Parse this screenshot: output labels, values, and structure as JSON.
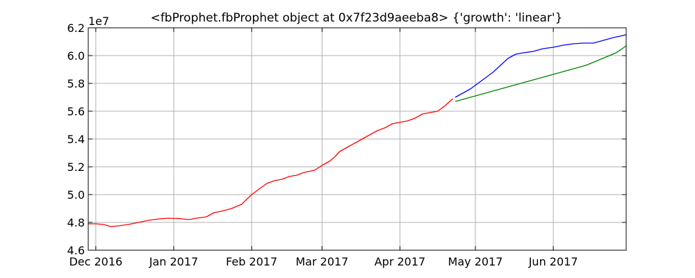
{
  "chart_data": {
    "type": "line",
    "title": "<fbProphet.fbProphet object at 0x7f23d9aeeba8> {'growth': 'linear'}",
    "xlabel": "",
    "ylabel": "",
    "y_scale_note": "1e7",
    "xlim": [
      "2016-11-28",
      "2017-06-30"
    ],
    "ylim": [
      4.6,
      6.2
    ],
    "grid": true,
    "x_ticks": [
      {
        "date": "2016-12-01",
        "label": "Dec 2016"
      },
      {
        "date": "2017-01-01",
        "label": "Jan 2017"
      },
      {
        "date": "2017-02-01",
        "label": "Feb 2017"
      },
      {
        "date": "2017-03-01",
        "label": "Mar 2017"
      },
      {
        "date": "2017-04-01",
        "label": "Apr 2017"
      },
      {
        "date": "2017-05-01",
        "label": "May 2017"
      },
      {
        "date": "2017-06-01",
        "label": "Jun 2017"
      }
    ],
    "y_ticks": [
      4.6,
      4.8,
      5.0,
      5.2,
      5.4,
      5.6,
      5.8,
      6.0,
      6.2
    ],
    "series": [
      {
        "color": "#ff0000",
        "points": [
          [
            "2016-11-28",
            4.79
          ],
          [
            "2016-12-01",
            4.79
          ],
          [
            "2016-12-04",
            4.785
          ],
          [
            "2016-12-07",
            4.77
          ],
          [
            "2016-12-10",
            4.775
          ],
          [
            "2016-12-14",
            4.785
          ],
          [
            "2016-12-18",
            4.8
          ],
          [
            "2016-12-22",
            4.815
          ],
          [
            "2016-12-26",
            4.825
          ],
          [
            "2016-12-30",
            4.83
          ],
          [
            "2017-01-03",
            4.828
          ],
          [
            "2017-01-07",
            4.82
          ],
          [
            "2017-01-10",
            4.83
          ],
          [
            "2017-01-14",
            4.84
          ],
          [
            "2017-01-17",
            4.87
          ],
          [
            "2017-01-20",
            4.88
          ],
          [
            "2017-01-24",
            4.9
          ],
          [
            "2017-01-28",
            4.93
          ],
          [
            "2017-02-01",
            5.0
          ],
          [
            "2017-02-04",
            5.04
          ],
          [
            "2017-02-07",
            5.08
          ],
          [
            "2017-02-10",
            5.1
          ],
          [
            "2017-02-13",
            5.11
          ],
          [
            "2017-02-16",
            5.13
          ],
          [
            "2017-02-19",
            5.14
          ],
          [
            "2017-02-22",
            5.16
          ],
          [
            "2017-02-26",
            5.175
          ],
          [
            "2017-03-01",
            5.21
          ],
          [
            "2017-03-04",
            5.24
          ],
          [
            "2017-03-06",
            5.27
          ],
          [
            "2017-03-08",
            5.31
          ],
          [
            "2017-03-11",
            5.34
          ],
          [
            "2017-03-14",
            5.37
          ],
          [
            "2017-03-17",
            5.4
          ],
          [
            "2017-03-20",
            5.43
          ],
          [
            "2017-03-23",
            5.46
          ],
          [
            "2017-03-26",
            5.48
          ],
          [
            "2017-03-29",
            5.51
          ],
          [
            "2017-04-01",
            5.52
          ],
          [
            "2017-04-04",
            5.53
          ],
          [
            "2017-04-07",
            5.55
          ],
          [
            "2017-04-10",
            5.58
          ],
          [
            "2017-04-13",
            5.59
          ],
          [
            "2017-04-16",
            5.6
          ],
          [
            "2017-04-19",
            5.64
          ],
          [
            "2017-04-22",
            5.69
          ]
        ]
      },
      {
        "color": "#0000ff",
        "points": [
          [
            "2017-04-23",
            5.7
          ],
          [
            "2017-04-26",
            5.73
          ],
          [
            "2017-04-29",
            5.76
          ],
          [
            "2017-05-02",
            5.8
          ],
          [
            "2017-05-05",
            5.84
          ],
          [
            "2017-05-08",
            5.88
          ],
          [
            "2017-05-11",
            5.93
          ],
          [
            "2017-05-14",
            5.98
          ],
          [
            "2017-05-17",
            6.01
          ],
          [
            "2017-05-20",
            6.02
          ],
          [
            "2017-05-24",
            6.03
          ],
          [
            "2017-05-28",
            6.05
          ],
          [
            "2017-06-01",
            6.06
          ],
          [
            "2017-06-05",
            6.075
          ],
          [
            "2017-06-09",
            6.085
          ],
          [
            "2017-06-13",
            6.09
          ],
          [
            "2017-06-17",
            6.09
          ],
          [
            "2017-06-21",
            6.11
          ],
          [
            "2017-06-25",
            6.13
          ],
          [
            "2017-06-30",
            6.15
          ]
        ]
      },
      {
        "color": "#008000",
        "points": [
          [
            "2017-04-23",
            5.67
          ],
          [
            "2017-04-27",
            5.69
          ],
          [
            "2017-05-01",
            5.71
          ],
          [
            "2017-05-05",
            5.73
          ],
          [
            "2017-05-09",
            5.75
          ],
          [
            "2017-05-13",
            5.77
          ],
          [
            "2017-05-17",
            5.79
          ],
          [
            "2017-05-21",
            5.81
          ],
          [
            "2017-05-25",
            5.83
          ],
          [
            "2017-05-29",
            5.85
          ],
          [
            "2017-06-02",
            5.87
          ],
          [
            "2017-06-06",
            5.89
          ],
          [
            "2017-06-10",
            5.91
          ],
          [
            "2017-06-14",
            5.93
          ],
          [
            "2017-06-18",
            5.96
          ],
          [
            "2017-06-22",
            5.99
          ],
          [
            "2017-06-26",
            6.02
          ],
          [
            "2017-06-30",
            6.07
          ]
        ]
      }
    ]
  }
}
